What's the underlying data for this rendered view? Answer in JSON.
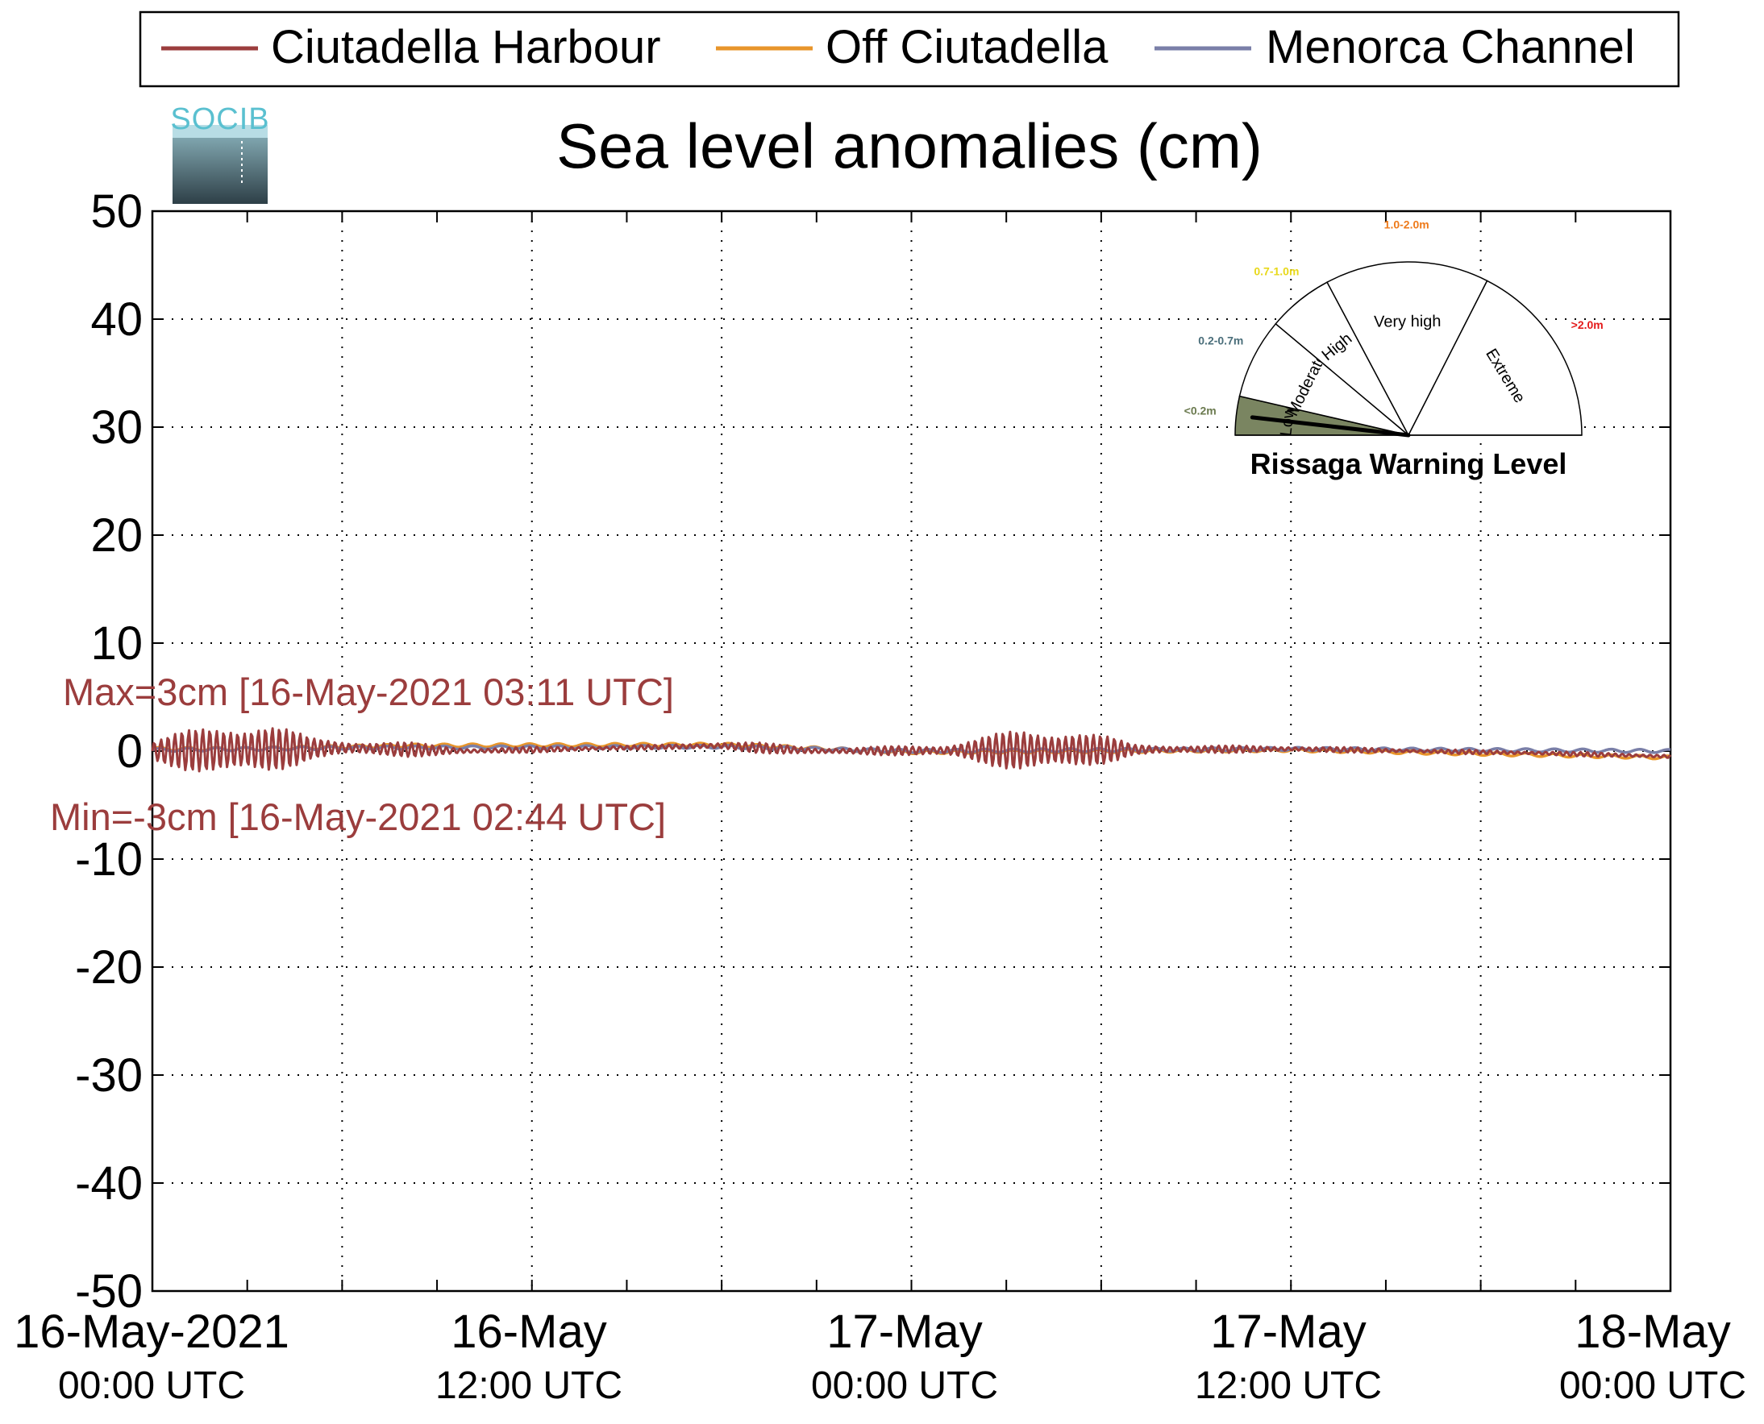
{
  "chart_data": {
    "type": "line",
    "title": "Sea level anomalies (cm)",
    "logo_text": "SOCIB",
    "xlabel": "",
    "ylabel": "",
    "ylim": [
      -50,
      50
    ],
    "yticks": [
      "50",
      "40",
      "30",
      "20",
      "10",
      "0",
      "-10",
      "-20",
      "-30",
      "-40",
      "-50"
    ],
    "xlim": [
      "2021-05-16 00:00",
      "2021-05-18 00:00"
    ],
    "xticks": [
      {
        "line1": "16-May-2021",
        "line2": "00:00 UTC"
      },
      {
        "line1": "16-May",
        "line2": "12:00 UTC"
      },
      {
        "line1": "17-May",
        "line2": "00:00 UTC"
      },
      {
        "line1": "17-May",
        "line2": "12:00 UTC"
      },
      {
        "line1": "18-May",
        "line2": "00:00 UTC"
      }
    ],
    "grid": true,
    "legend_position": "top",
    "series": [
      {
        "name": "Ciutadella Harbour",
        "color": "#9B3D3D",
        "envelope_cm": [
          {
            "hour": 0.0,
            "amp": 1.0
          },
          {
            "hour": 1.0,
            "amp": 1.8
          },
          {
            "hour": 2.5,
            "amp": 3.0
          },
          {
            "hour": 3.5,
            "amp": 2.8
          },
          {
            "hour": 5.0,
            "amp": 1.0
          },
          {
            "hour": 6.0,
            "amp": 0.8
          },
          {
            "hour": 8.0,
            "amp": 0.7
          },
          {
            "hour": 10.0,
            "amp": 0.3
          },
          {
            "hour": 16.0,
            "amp": 0.2
          },
          {
            "hour": 19.0,
            "amp": 0.5
          },
          {
            "hour": 22.0,
            "amp": 0.3
          },
          {
            "hour": 25.0,
            "amp": 0.6
          },
          {
            "hour": 27.5,
            "amp": 2.0
          },
          {
            "hour": 29.0,
            "amp": 2.4
          },
          {
            "hour": 31.0,
            "amp": 0.5
          },
          {
            "hour": 35.0,
            "amp": 0.3
          },
          {
            "hour": 40.0,
            "amp": 0.2
          },
          {
            "hour": 48.0,
            "amp": 0.2
          }
        ],
        "baseline_cm": [
          {
            "hour": 0.0,
            "v": 0.0
          },
          {
            "hour": 6.0,
            "v": 0.3
          },
          {
            "hour": 10.0,
            "v": 0.0
          },
          {
            "hour": 18.0,
            "v": 0.5
          },
          {
            "hour": 21.0,
            "v": 0.0
          },
          {
            "hour": 36.0,
            "v": 0.2
          },
          {
            "hour": 44.0,
            "v": -0.2
          },
          {
            "hour": 48.0,
            "v": -0.5
          }
        ]
      },
      {
        "name": "Off Ciutadella",
        "color": "#E8952B",
        "baseline_cm": [
          {
            "hour": 0.0,
            "v": 0.2
          },
          {
            "hour": 3.0,
            "v": 0.2
          },
          {
            "hour": 8.0,
            "v": 0.5
          },
          {
            "hour": 18.0,
            "v": 0.6
          },
          {
            "hour": 24.0,
            "v": -0.1
          },
          {
            "hour": 36.0,
            "v": 0.1
          },
          {
            "hour": 48.0,
            "v": -0.6
          }
        ]
      },
      {
        "name": "Menorca Channel",
        "color": "#7A7FA8",
        "baseline_cm": [
          {
            "hour": 0.0,
            "v": 0.1
          },
          {
            "hour": 6.0,
            "v": 0.3
          },
          {
            "hour": 18.0,
            "v": 0.4
          },
          {
            "hour": 24.0,
            "v": 0.0
          },
          {
            "hour": 36.0,
            "v": 0.2
          },
          {
            "hour": 48.0,
            "v": 0.0
          }
        ]
      }
    ],
    "annotations": {
      "max": {
        "text": "Max=3cm [16-May-2021 03:11 UTC]",
        "color": "#9B3D3D"
      },
      "min": {
        "text": "Min=-3cm [16-May-2021 02:44 UTC]",
        "color": "#9B3D3D"
      }
    },
    "gauge": {
      "title": "Rissaga Warning Level",
      "current_level": "Low",
      "levels": [
        {
          "name": "Low",
          "range": "<0.2m",
          "range_color": "#6B7A4F",
          "active": true,
          "fill": "#7A8561"
        },
        {
          "name": "Moderate",
          "range": "0.2-0.7m",
          "range_color": "#4A6E7A",
          "active": false,
          "fill": "#ffffff"
        },
        {
          "name": "High",
          "range": "0.7-1.0m",
          "range_color": "#E8D81A",
          "active": false,
          "fill": "#ffffff"
        },
        {
          "name": "Very high",
          "range": "1.0-2.0m",
          "range_color": "#EE7A1A",
          "active": false,
          "fill": "#ffffff"
        },
        {
          "name": "Extreme",
          "range": ">2.0m",
          "range_color": "#E41A1A",
          "active": false,
          "fill": "#ffffff"
        }
      ]
    }
  }
}
